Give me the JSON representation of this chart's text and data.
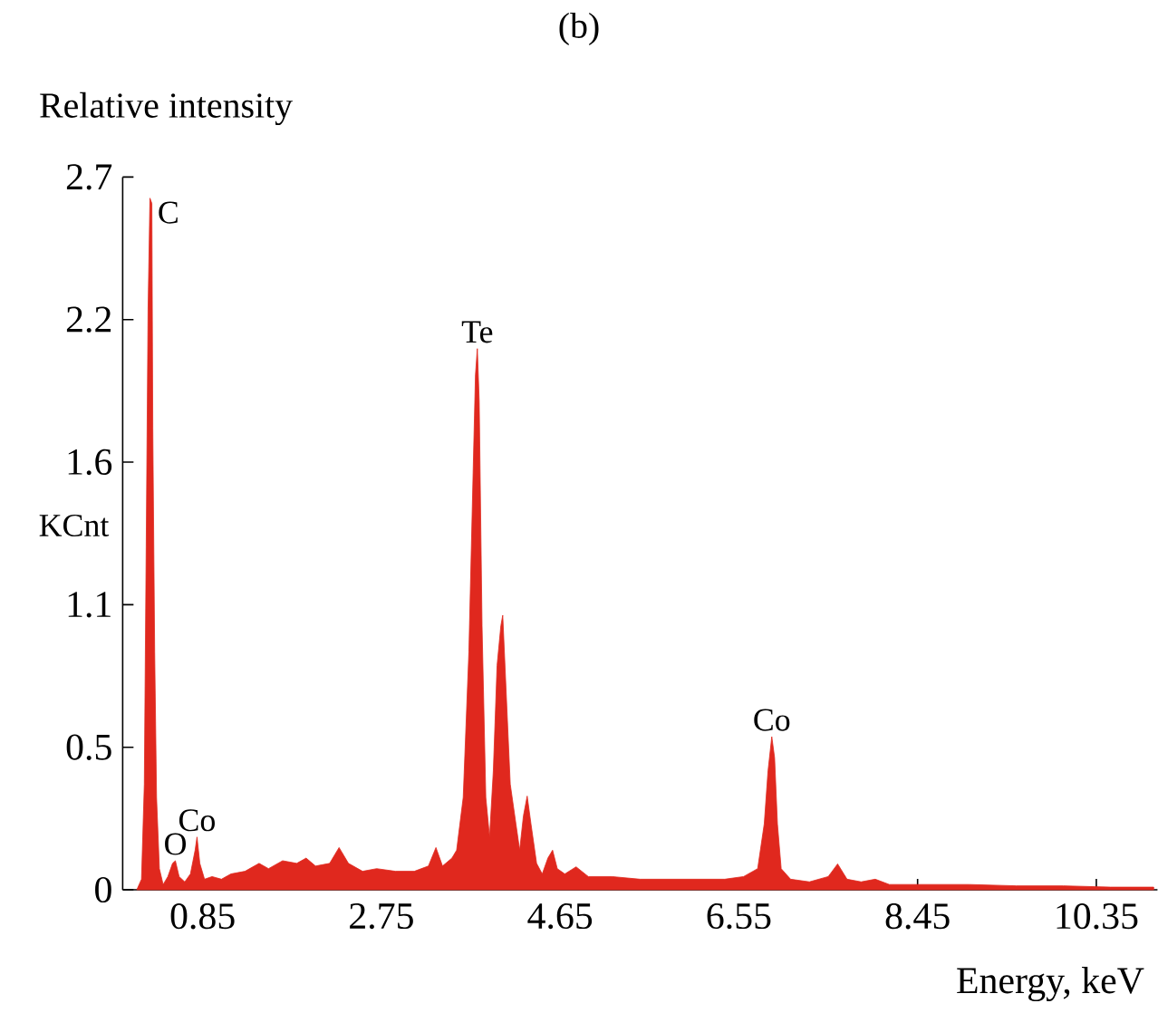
{
  "chart_data": {
    "type": "area",
    "title": "(b)",
    "ylabel": "Relative intensity",
    "xlabel": "Energy, keV",
    "annotations": [
      "KCnt",
      {
        "text": "C",
        "x": 0.29,
        "y": 2.62
      },
      {
        "text": "O",
        "x": 0.56,
        "y": 0.11
      },
      {
        "text": "Co",
        "x": 0.79,
        "y": 0.2
      },
      {
        "text": "Te",
        "x": 3.77,
        "y": 2.05
      },
      {
        "text": "Co",
        "x": 6.9,
        "y": 0.58
      }
    ],
    "xlim": [
      0,
      11.0
    ],
    "ylim": [
      0,
      2.7
    ],
    "xticks": [
      0.85,
      2.75,
      4.65,
      6.55,
      8.45,
      10.35
    ],
    "yticks": [
      0,
      {
        "value": 0.54,
        "label": "0.5"
      },
      {
        "value": 1.08,
        "label": "1.1"
      },
      {
        "value": 1.62,
        "label": "1.6"
      },
      {
        "value": 2.16,
        "label": "2.2"
      },
      2.7
    ],
    "series": [
      {
        "color": "#e0281e",
        "x": [
          0.15,
          0.2,
          0.23,
          0.25,
          0.27,
          0.29,
          0.31,
          0.32,
          0.34,
          0.36,
          0.39,
          0.43,
          0.48,
          0.53,
          0.56,
          0.6,
          0.66,
          0.72,
          0.77,
          0.79,
          0.82,
          0.87,
          0.95,
          1.05,
          1.15,
          1.3,
          1.45,
          1.55,
          1.7,
          1.85,
          1.95,
          2.05,
          2.2,
          2.3,
          2.4,
          2.55,
          2.7,
          2.9,
          3.1,
          3.25,
          3.33,
          3.4,
          3.5,
          3.55,
          3.62,
          3.68,
          3.72,
          3.75,
          3.77,
          3.79,
          3.82,
          3.86,
          3.9,
          3.94,
          3.98,
          4.02,
          4.04,
          4.07,
          4.12,
          4.18,
          4.22,
          4.26,
          4.3,
          4.34,
          4.4,
          4.46,
          4.52,
          4.57,
          4.62,
          4.7,
          4.82,
          4.95,
          5.2,
          5.5,
          5.8,
          6.1,
          6.4,
          6.6,
          6.75,
          6.82,
          6.86,
          6.9,
          6.93,
          6.96,
          7.0,
          7.1,
          7.3,
          7.5,
          7.6,
          7.7,
          7.85,
          8.0,
          8.15,
          8.5,
          9.0,
          9.5,
          10.0,
          10.5,
          10.96
        ],
        "values": [
          0,
          0.04,
          0.4,
          1.3,
          2.2,
          2.62,
          2.6,
          1.75,
          0.9,
          0.35,
          0.08,
          0.02,
          0.05,
          0.1,
          0.11,
          0.05,
          0.03,
          0.06,
          0.15,
          0.2,
          0.1,
          0.04,
          0.05,
          0.04,
          0.06,
          0.07,
          0.1,
          0.08,
          0.11,
          0.1,
          0.12,
          0.09,
          0.1,
          0.16,
          0.1,
          0.07,
          0.08,
          0.07,
          0.07,
          0.09,
          0.16,
          0.09,
          0.12,
          0.15,
          0.35,
          0.9,
          1.5,
          1.95,
          2.05,
          1.85,
          1.0,
          0.35,
          0.2,
          0.45,
          0.85,
          1.0,
          1.04,
          0.8,
          0.4,
          0.25,
          0.15,
          0.28,
          0.355,
          0.25,
          0.1,
          0.06,
          0.12,
          0.15,
          0.08,
          0.06,
          0.087,
          0.05,
          0.05,
          0.04,
          0.04,
          0.04,
          0.04,
          0.05,
          0.08,
          0.25,
          0.45,
          0.58,
          0.5,
          0.25,
          0.08,
          0.04,
          0.03,
          0.05,
          0.098,
          0.04,
          0.03,
          0.04,
          0.02,
          0.02,
          0.02,
          0.015,
          0.015,
          0.01,
          0.01
        ]
      }
    ]
  }
}
